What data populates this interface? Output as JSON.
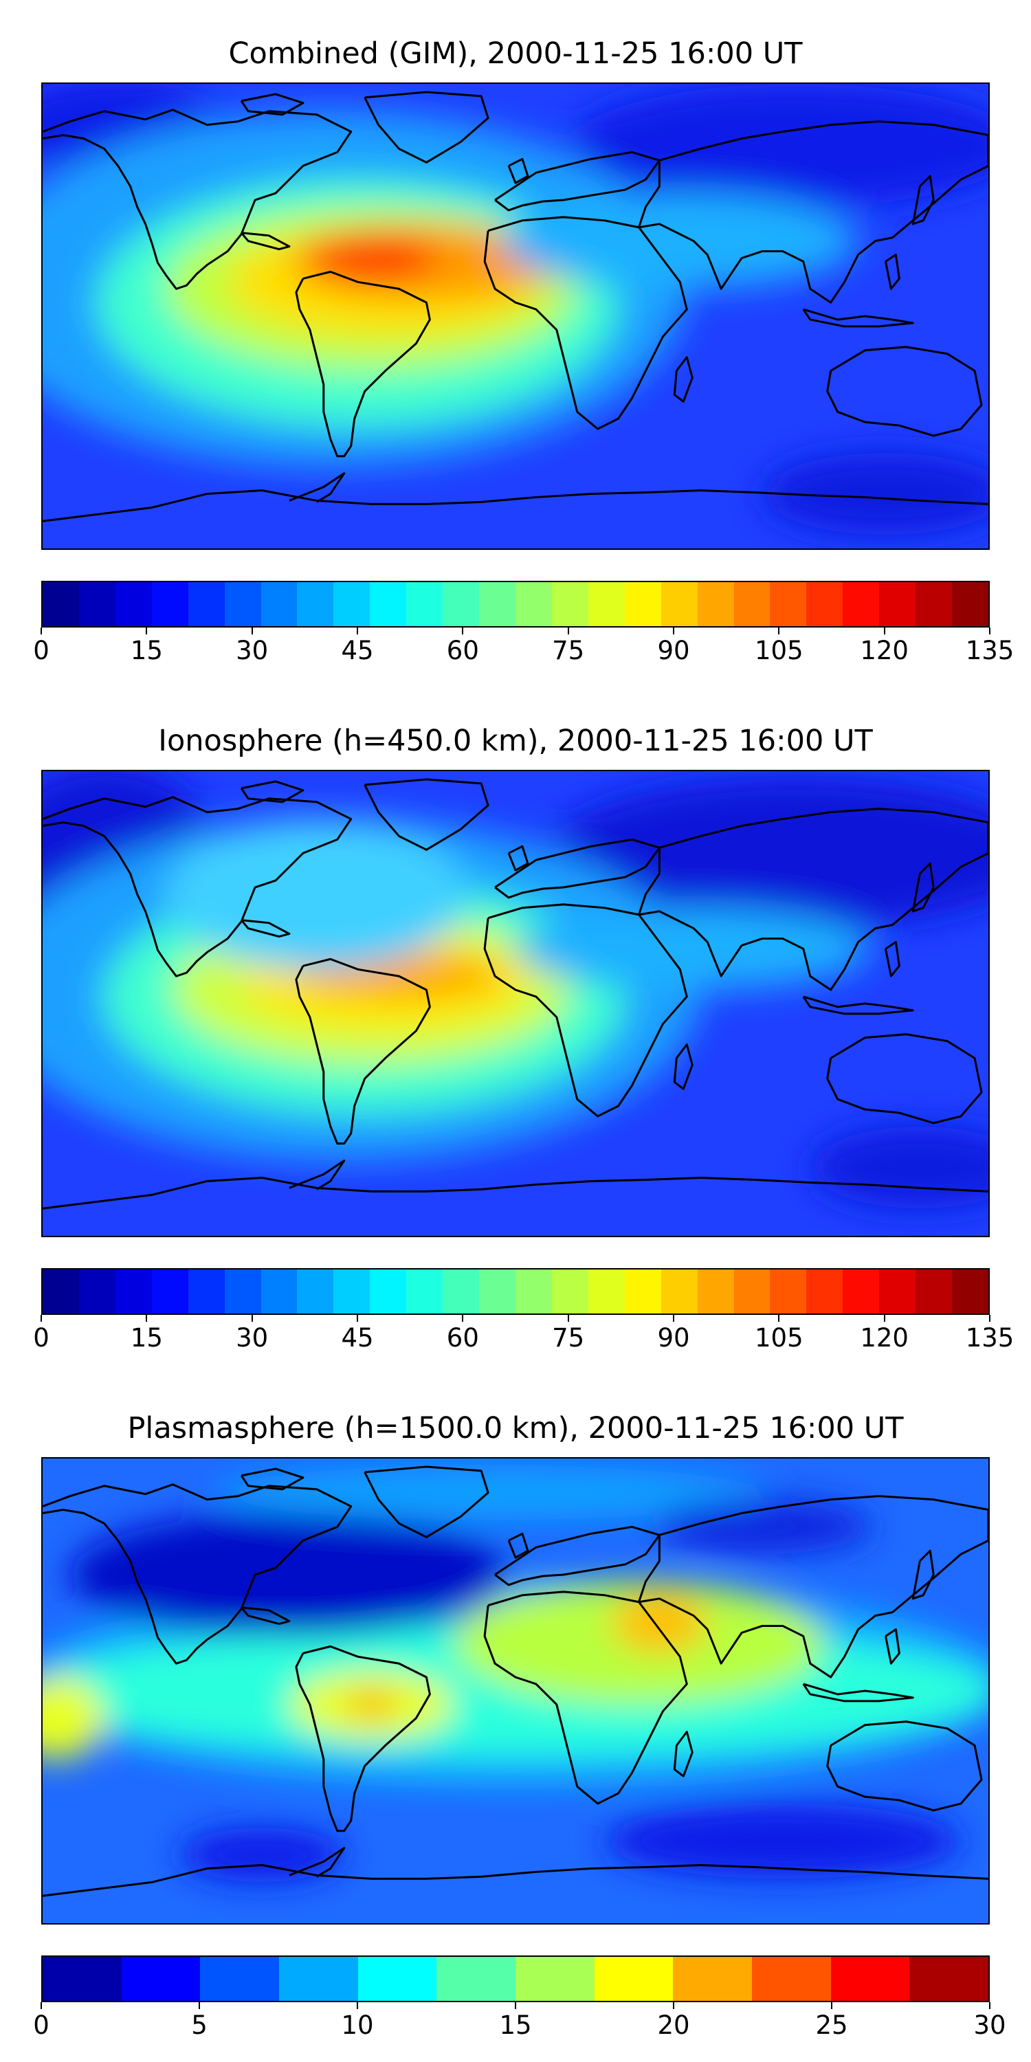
{
  "panels": [
    {
      "title": "Combined (GIM), 2000-11-25 16:00 UT",
      "colorbar": {
        "min": 0,
        "max": 135,
        "levels": 26,
        "tick_labels": [
          "0",
          "15",
          "30",
          "45",
          "60",
          "75",
          "90",
          "105",
          "120",
          "135"
        ],
        "tick_values": [
          0,
          15,
          30,
          45,
          60,
          75,
          90,
          105,
          120,
          135
        ]
      }
    },
    {
      "title": "Ionosphere  (h=450.0 km), 2000-11-25 16:00 UT",
      "colorbar": {
        "min": 0,
        "max": 135,
        "levels": 26,
        "tick_labels": [
          "0",
          "15",
          "30",
          "45",
          "60",
          "75",
          "90",
          "105",
          "120",
          "135"
        ],
        "tick_values": [
          0,
          15,
          30,
          45,
          60,
          75,
          90,
          105,
          120,
          135
        ]
      }
    },
    {
      "title": "Plasmasphere (h=1500.0 km), 2000-11-25 16:00 UT",
      "colorbar": {
        "min": 0,
        "max": 30,
        "levels": 12,
        "tick_labels": [
          "0",
          "5",
          "10",
          "15",
          "20",
          "25",
          "30"
        ],
        "tick_values": [
          0,
          5,
          10,
          15,
          20,
          25,
          30
        ]
      }
    }
  ],
  "colormap": "jet",
  "jet_stops": [
    "#00007f",
    "#0000ff",
    "#007fff",
    "#00ffff",
    "#7fff7f",
    "#ffff00",
    "#ff7f00",
    "#ff0000",
    "#7f0000"
  ]
}
